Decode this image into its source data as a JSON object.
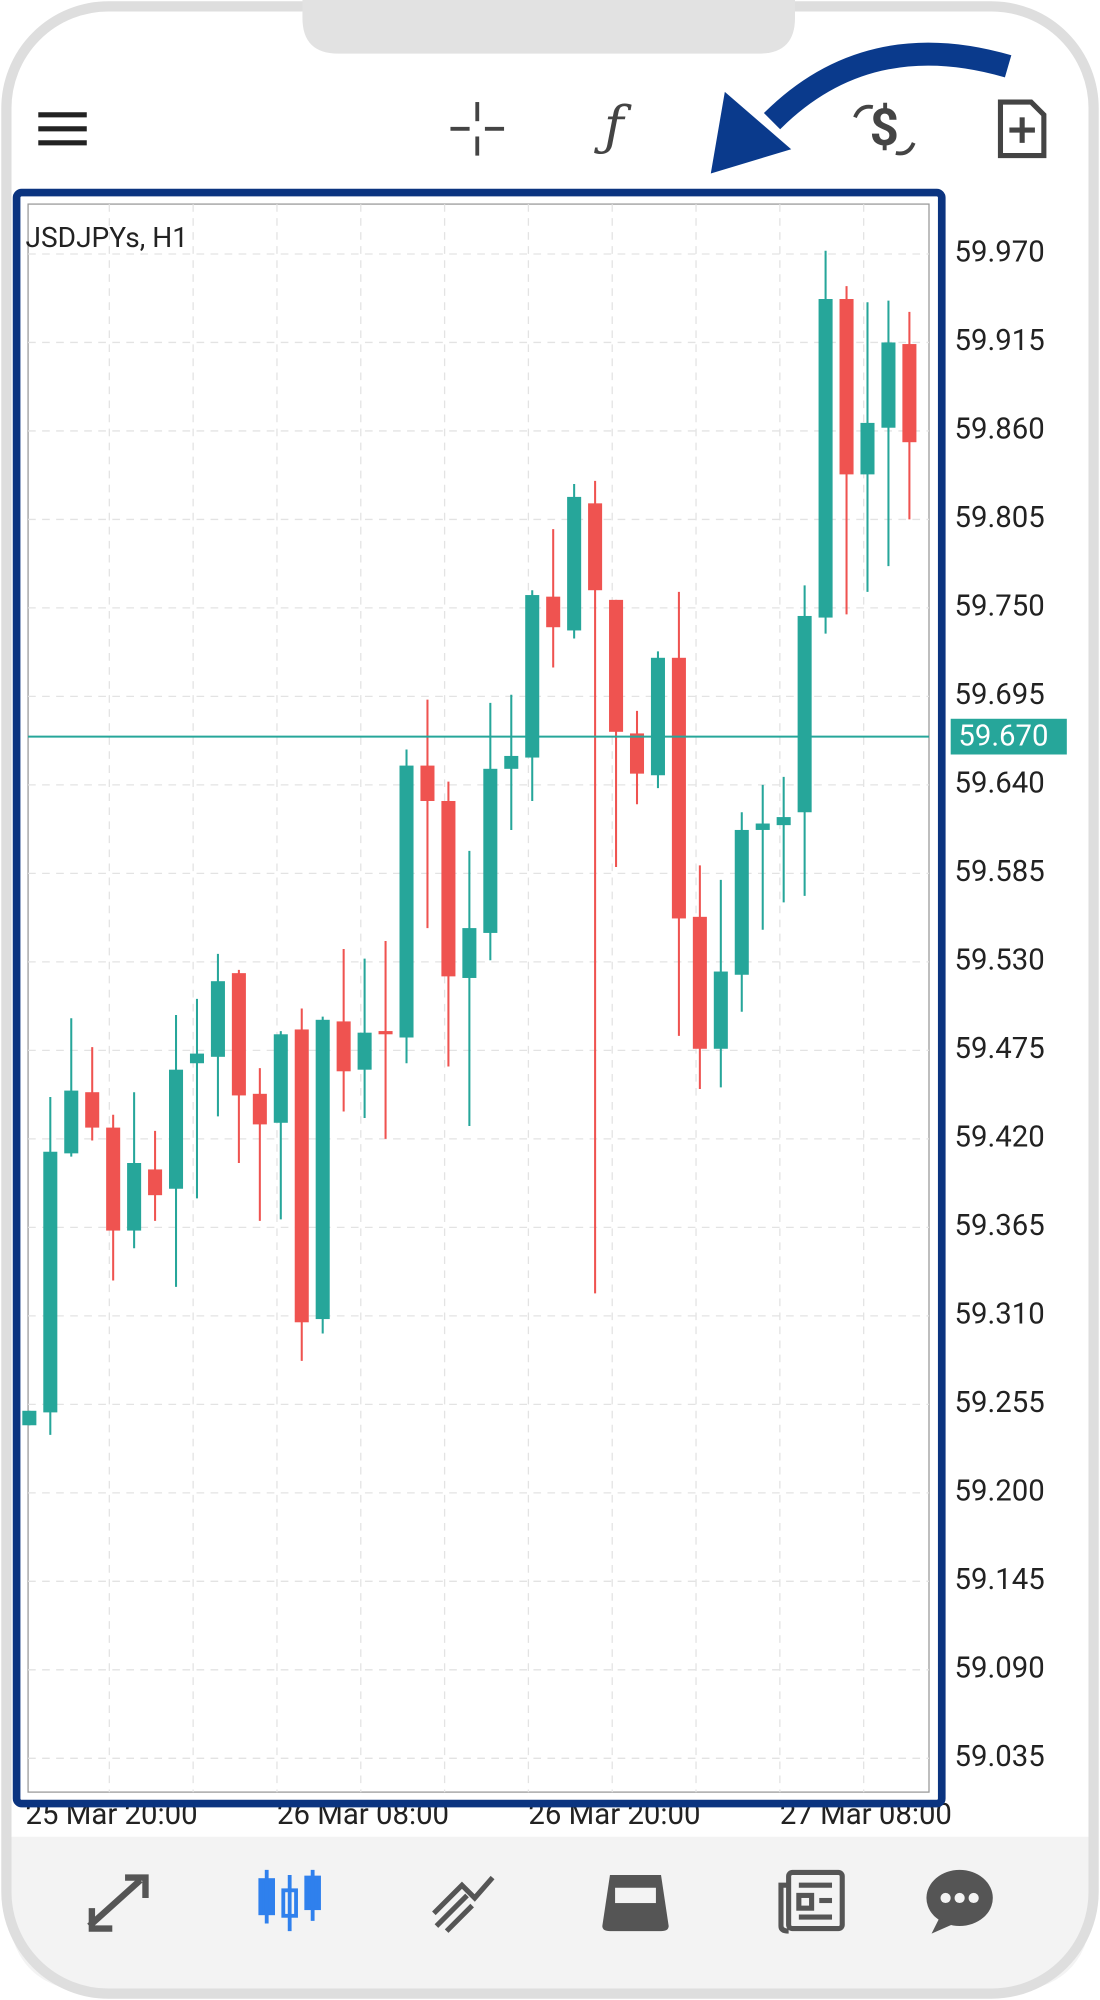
{
  "chart_data": {
    "type": "candlestick",
    "title": "JSDJPYs, H1",
    "categories": [
      "25 Mar 20:00",
      null,
      null,
      null,
      null,
      null,
      null,
      null,
      null,
      null,
      null,
      null,
      "26 Mar 08:00",
      null,
      null,
      null,
      null,
      null,
      null,
      null,
      null,
      null,
      null,
      null,
      "26 Mar 20:00",
      null,
      null,
      null,
      null,
      null,
      null,
      null,
      null,
      null,
      null,
      null,
      "27 Mar 08:00",
      null,
      null,
      null,
      null,
      null,
      null
    ],
    "open": [
      59.242,
      59.25,
      59.411,
      59.449,
      59.427,
      59.363,
      59.401,
      59.389,
      59.467,
      59.471,
      59.523,
      59.448,
      59.43,
      59.488,
      59.308,
      59.493,
      59.463,
      59.487,
      59.483,
      59.652,
      59.63,
      59.52,
      59.548,
      59.65,
      59.657,
      59.757,
      59.736,
      59.815,
      59.755,
      59.672,
      59.646,
      59.719,
      59.558,
      59.476,
      59.522,
      59.612,
      59.615,
      59.623,
      59.744,
      59.942,
      59.833,
      59.862,
      59.914
    ],
    "high": [
      59.251,
      59.446,
      59.495,
      59.477,
      59.435,
      59.449,
      59.425,
      59.497,
      59.507,
      59.535,
      59.525,
      59.464,
      59.487,
      59.501,
      59.496,
      59.538,
      59.532,
      59.543,
      59.662,
      59.693,
      59.642,
      59.599,
      59.691,
      59.696,
      59.761,
      59.799,
      59.827,
      59.829,
      59.755,
      59.686,
      59.723,
      59.76,
      59.59,
      59.581,
      59.623,
      59.64,
      59.645,
      59.764,
      59.972,
      59.95,
      59.94,
      59.941,
      59.934
    ],
    "low": [
      59.242,
      59.236,
      59.409,
      59.419,
      59.332,
      59.352,
      59.369,
      59.328,
      59.383,
      59.434,
      59.405,
      59.369,
      59.37,
      59.282,
      59.299,
      59.437,
      59.433,
      59.42,
      59.467,
      59.551,
      59.465,
      59.428,
      59.531,
      59.612,
      59.63,
      59.713,
      59.731,
      59.324,
      59.589,
      59.628,
      59.638,
      59.484,
      59.451,
      59.452,
      59.499,
      59.55,
      59.567,
      59.571,
      59.734,
      59.746,
      59.76,
      59.776,
      59.805
    ],
    "close": [
      59.251,
      59.412,
      59.45,
      59.427,
      59.363,
      59.405,
      59.385,
      59.463,
      59.473,
      59.518,
      59.447,
      59.429,
      59.485,
      59.306,
      59.494,
      59.462,
      59.486,
      59.485,
      59.652,
      59.63,
      59.521,
      59.551,
      59.65,
      59.658,
      59.758,
      59.738,
      59.819,
      59.761,
      59.673,
      59.647,
      59.719,
      59.557,
      59.476,
      59.524,
      59.612,
      59.616,
      59.62,
      59.745,
      59.942,
      59.833,
      59.865,
      59.915,
      59.853
    ],
    "up_color": "#26a69a",
    "down_color": "#ef5350",
    "current_price": {
      "value": 59.67,
      "label": "59.670"
    },
    "ylim": [
      59.014,
      60.001
    ],
    "yticks": [
      {
        "value": 59.97,
        "label": "59.970"
      },
      59.915,
      {
        "value": 59.86,
        "label": "59.860"
      },
      59.805,
      {
        "value": 59.75,
        "label": "59.750"
      },
      59.695,
      {
        "value": 59.64,
        "label": "59.640"
      },
      59.585,
      {
        "value": 59.53,
        "label": "59.530"
      },
      59.475,
      {
        "value": 59.42,
        "label": "59.420"
      },
      59.365,
      {
        "value": 59.31,
        "label": "59.310"
      },
      59.255,
      {
        "value": 59.2,
        "label": "59.200"
      },
      59.145,
      {
        "value": 59.09,
        "label": "59.090"
      },
      59.035
    ],
    "grid": true
  }
}
